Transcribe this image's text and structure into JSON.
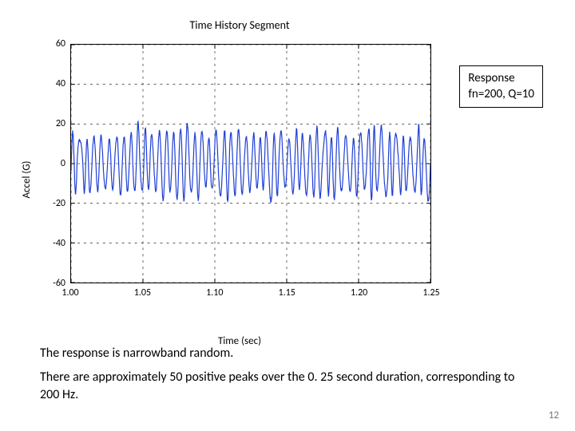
{
  "chart": {
    "type": "line",
    "title": "Time History Segment",
    "xlabel": "Time (sec)",
    "ylabel": "Accel (G)",
    "xlim": [
      1.0,
      1.25
    ],
    "ylim": [
      -60,
      60
    ],
    "xticks": [
      1.0,
      1.05,
      1.1,
      1.15,
      1.2,
      1.25
    ],
    "xtick_labels": [
      "1.00",
      "1.05",
      "1.10",
      "1.15",
      "1.20",
      "1.25"
    ],
    "yticks": [
      -60,
      -40,
      -20,
      0,
      20,
      40,
      60
    ],
    "ytick_labels": [
      "-60",
      "-40",
      "-20",
      "0",
      "20",
      "40",
      "60"
    ],
    "line_color": "#1f3fd4",
    "line_width": 1.2,
    "grid_color": "#000000",
    "grid_dash": "3 5",
    "background_color": "#ffffff",
    "tick_len": 5,
    "signal": {
      "fn_hz": 200,
      "q": 10,
      "n_points": 1400,
      "n_positive_peaks_approx": 50,
      "amplitude_typical": 20,
      "amplitude_max": 33,
      "seed": 7
    }
  },
  "caption_box": {
    "line1": "Response",
    "line2": "fn=200, Q=10"
  },
  "text": {
    "p1": "The response is narrowband random.",
    "p2": "There are approximately 50 positive peaks over the 0. 25 second duration, corresponding to 200 Hz."
  },
  "page_number": "12",
  "fonts": {
    "title_fontsize": 14,
    "label_fontsize": 13,
    "tick_fontsize": 12,
    "caption_fontsize": 15,
    "body_fontsize": 16
  },
  "colors": {
    "text": "#000000",
    "page_num": "#777777",
    "bg": "#ffffff"
  }
}
